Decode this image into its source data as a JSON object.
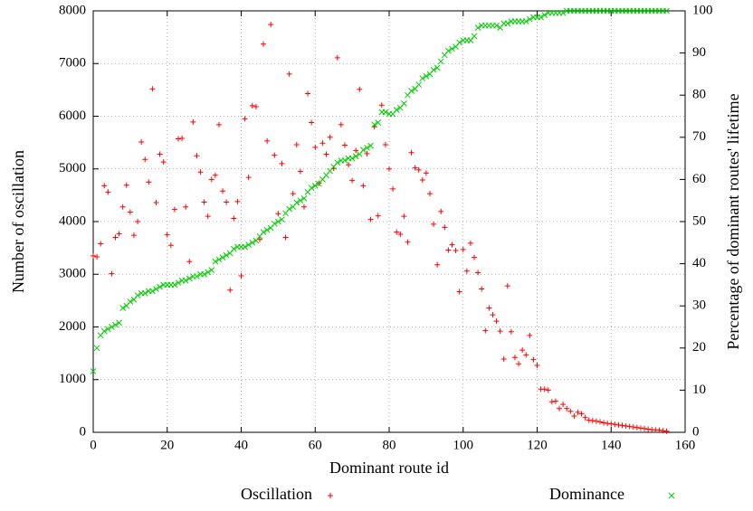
{
  "chart_data": {
    "type": "scatter",
    "x_label": "Dominant route id",
    "y_label": "Number of oscillation",
    "y2_label": "Percentage of dominant routes' lifetime",
    "x": [
      0,
      1,
      2,
      3,
      4,
      5,
      6,
      7,
      8,
      9,
      10,
      11,
      12,
      13,
      14,
      15,
      16,
      17,
      18,
      19,
      20,
      21,
      22,
      23,
      24,
      25,
      26,
      27,
      28,
      29,
      30,
      31,
      32,
      33,
      34,
      35,
      36,
      37,
      38,
      39,
      40,
      41,
      42,
      43,
      44,
      45,
      46,
      47,
      48,
      49,
      50,
      51,
      52,
      53,
      54,
      55,
      56,
      57,
      58,
      59,
      60,
      61,
      62,
      63,
      64,
      65,
      66,
      67,
      68,
      69,
      70,
      71,
      72,
      73,
      74,
      75,
      76,
      77,
      78,
      79,
      80,
      81,
      82,
      83,
      84,
      85,
      86,
      87,
      88,
      89,
      90,
      91,
      92,
      93,
      94,
      95,
      96,
      97,
      98,
      99,
      100,
      101,
      102,
      103,
      104,
      105,
      106,
      107,
      108,
      109,
      110,
      111,
      112,
      113,
      114,
      115,
      116,
      117,
      118,
      119,
      120,
      121,
      122,
      123,
      124,
      125,
      126,
      127,
      128,
      129,
      130,
      131,
      132,
      133,
      134,
      135,
      136,
      137,
      138,
      139,
      140,
      141,
      142,
      143,
      144,
      145,
      146,
      147,
      148,
      149,
      150,
      151,
      152,
      153,
      154,
      155
    ],
    "series": [
      {
        "name": "Oscillation",
        "color": "#ff0000",
        "marker": "+",
        "values": [
          3350,
          3330,
          3580,
          4680,
          4560,
          3010,
          3700,
          3770,
          4280,
          4690,
          4180,
          3740,
          4000,
          5510,
          5180,
          4750,
          6520,
          4360,
          5280,
          5130,
          3750,
          3550,
          4230,
          5570,
          5580,
          4280,
          3240,
          5890,
          5250,
          4940,
          4370,
          4100,
          4800,
          4880,
          5840,
          4580,
          4370,
          2700,
          4060,
          4380,
          2970,
          5950,
          4840,
          6200,
          6180,
          3660,
          7370,
          5530,
          7740,
          5260,
          4150,
          5100,
          3700,
          6800,
          4530,
          5460,
          4950,
          4280,
          6430,
          5880,
          5410,
          4730,
          5490,
          5280,
          5600,
          5010,
          7110,
          5840,
          5450,
          5080,
          4780,
          5350,
          6510,
          4680,
          5290,
          4040,
          5800,
          4110,
          6210,
          5460,
          5000,
          4620,
          3800,
          3760,
          4100,
          3610,
          5310,
          5020,
          4980,
          4790,
          4920,
          4530,
          3950,
          3180,
          4190,
          3890,
          3460,
          3560,
          3450,
          2670,
          3470,
          3060,
          3590,
          3320,
          3030,
          2720,
          1930,
          2360,
          2230,
          2110,
          1920,
          1390,
          2780,
          1910,
          1420,
          1300,
          1560,
          1470,
          1840,
          1380,
          1270,
          820,
          820,
          800,
          580,
          590,
          450,
          530,
          450,
          400,
          310,
          380,
          350,
          280,
          230,
          220,
          210,
          200,
          180,
          170,
          160,
          150,
          140,
          130,
          120,
          110,
          100,
          90,
          80,
          70,
          60,
          50,
          45,
          40,
          30,
          20
        ]
      },
      {
        "name": "Dominance",
        "color": "#00cc00",
        "marker": "x",
        "axis": "y2",
        "values": [
          14.5,
          20,
          23,
          24,
          24.5,
          25,
          25.5,
          26,
          29.5,
          30,
          31,
          31.5,
          32.5,
          33,
          33,
          33.5,
          33.5,
          34,
          34.5,
          35,
          35,
          35,
          35,
          35.5,
          36,
          36,
          36.5,
          37,
          37,
          37.5,
          37.5,
          38,
          38.5,
          40.5,
          41,
          41.5,
          42,
          42.5,
          43.5,
          44,
          44,
          44,
          44.5,
          45,
          45.5,
          46.5,
          47.5,
          48,
          48.5,
          49.5,
          50,
          50.5,
          52,
          53,
          53.5,
          54.5,
          55,
          55.5,
          57,
          58,
          58.5,
          59,
          60,
          61,
          62,
          63,
          64,
          64.5,
          64.5,
          65,
          65,
          65.5,
          66,
          67,
          67.5,
          68,
          73,
          73.5,
          76,
          76,
          75.5,
          75.5,
          76.5,
          77,
          78,
          80,
          81,
          81.5,
          82.5,
          84,
          84.5,
          85,
          86,
          86.5,
          88,
          89.5,
          90.5,
          91,
          91.5,
          92.5,
          93,
          93,
          93,
          94,
          96,
          96.5,
          96.5,
          96.5,
          96.5,
          96.5,
          96,
          97,
          97,
          97.5,
          97.5,
          97.5,
          97.5,
          97.5,
          98,
          98.5,
          98.5,
          98.5,
          99,
          99.5,
          99.5,
          99.5,
          99.5,
          99.5,
          100,
          100,
          100,
          100,
          100,
          100,
          100,
          100,
          100,
          100,
          100,
          100,
          100,
          100,
          100,
          100,
          100,
          100,
          100,
          100,
          100,
          100,
          100,
          100,
          100,
          100,
          100,
          100
        ]
      }
    ],
    "xlim": [
      0,
      160
    ],
    "xticks": [
      0,
      20,
      40,
      60,
      80,
      100,
      120,
      140,
      160
    ],
    "ylim": [
      0,
      8000
    ],
    "yticks": [
      0,
      1000,
      2000,
      3000,
      4000,
      5000,
      6000,
      7000,
      8000
    ],
    "y2lim": [
      0,
      100
    ],
    "y2ticks": [
      0,
      10,
      20,
      30,
      40,
      50,
      60,
      70,
      80,
      90,
      100
    ],
    "grid": true,
    "legend": "bottom"
  }
}
